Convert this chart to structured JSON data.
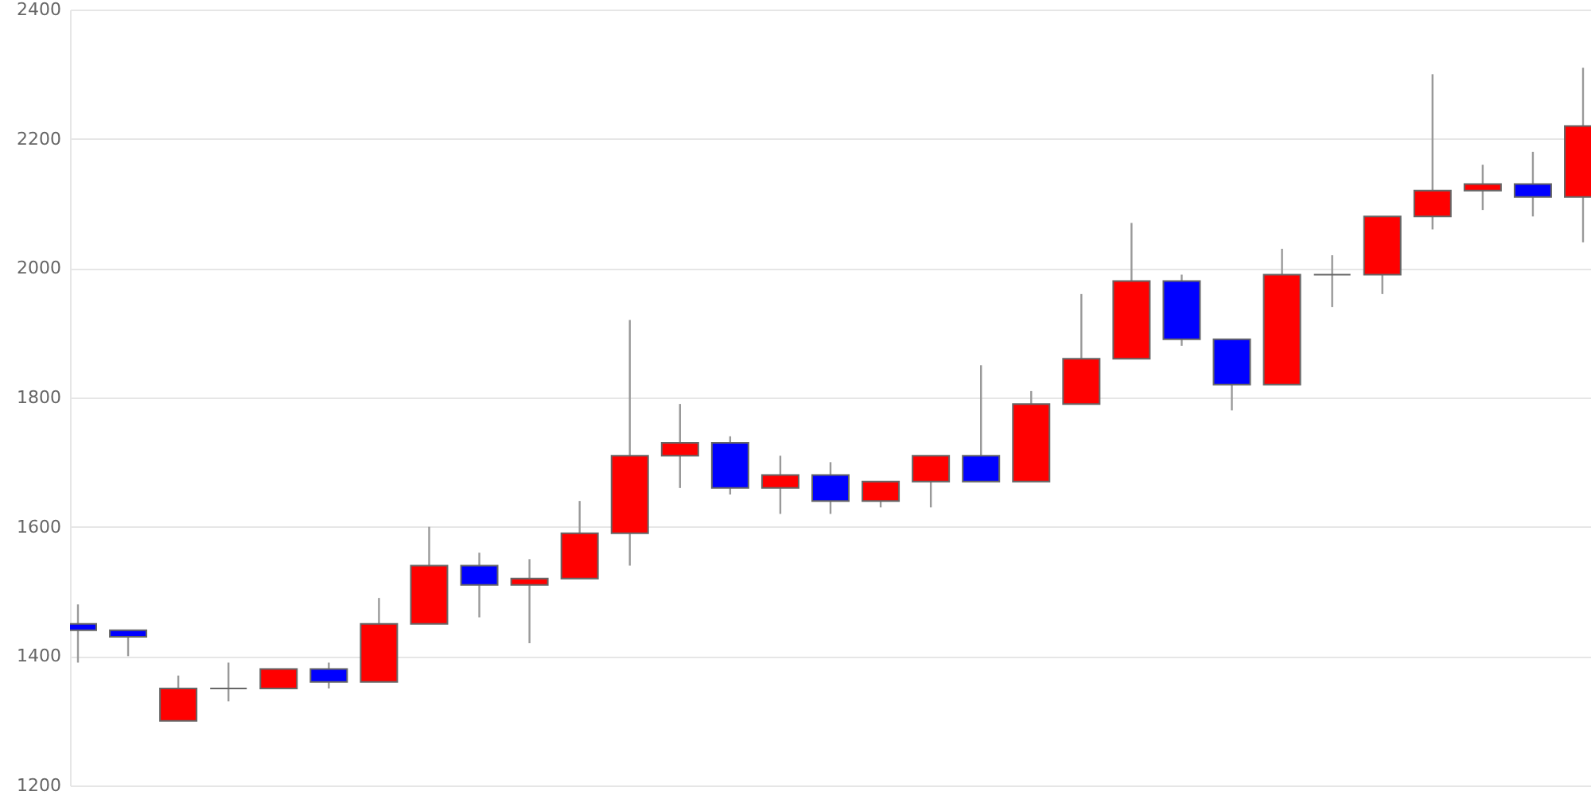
{
  "chart_data": {
    "type": "candlestick",
    "categories": [
      null,
      null,
      null,
      null,
      null,
      null,
      null,
      null,
      null,
      null,
      null,
      null,
      null,
      null,
      null,
      null,
      null,
      null,
      null,
      null,
      null,
      null,
      null,
      null,
      null,
      null,
      null,
      null,
      null,
      null,
      null
    ],
    "ohlc": [
      [
        1450,
        1480,
        1390,
        1440
      ],
      [
        1440,
        1440,
        1400,
        1430
      ],
      [
        1300,
        1370,
        1300,
        1350
      ],
      [
        1350,
        1390,
        1330,
        1350
      ],
      [
        1350,
        1380,
        1350,
        1380
      ],
      [
        1380,
        1390,
        1350,
        1360
      ],
      [
        1360,
        1490,
        1360,
        1450
      ],
      [
        1450,
        1600,
        1450,
        1540
      ],
      [
        1540,
        1560,
        1460,
        1510
      ],
      [
        1510,
        1550,
        1420,
        1520
      ],
      [
        1520,
        1640,
        1520,
        1590
      ],
      [
        1590,
        1920,
        1540,
        1710
      ],
      [
        1710,
        1790,
        1660,
        1730
      ],
      [
        1730,
        1740,
        1650,
        1660
      ],
      [
        1660,
        1710,
        1620,
        1680
      ],
      [
        1680,
        1700,
        1620,
        1640
      ],
      [
        1640,
        1670,
        1630,
        1670
      ],
      [
        1670,
        1710,
        1630,
        1710
      ],
      [
        1710,
        1850,
        1670,
        1670
      ],
      [
        1670,
        1810,
        1670,
        1790
      ],
      [
        1790,
        1960,
        1790,
        1860
      ],
      [
        1860,
        2070,
        1860,
        1980
      ],
      [
        1980,
        1990,
        1880,
        1890
      ],
      [
        1890,
        1890,
        1780,
        1820
      ],
      [
        1820,
        2030,
        1820,
        1990
      ],
      [
        1990,
        2020,
        1940,
        1990
      ],
      [
        1990,
        2080,
        1960,
        2080
      ],
      [
        2080,
        2300,
        2060,
        2120
      ],
      [
        2120,
        2160,
        2090,
        2130
      ],
      [
        2130,
        2180,
        2080,
        2110
      ],
      [
        2110,
        2310,
        2040,
        2220
      ]
    ],
    "colors": [
      "#0000ff",
      "#0000ff",
      "#ff0000",
      "#666666",
      "#ff0000",
      "#0000ff",
      "#ff0000",
      "#ff0000",
      "#0000ff",
      "#ff0000",
      "#ff0000",
      "#ff0000",
      "#ff0000",
      "#0000ff",
      "#ff0000",
      "#0000ff",
      "#ff0000",
      "#ff0000",
      "#0000ff",
      "#ff0000",
      "#ff0000",
      "#ff0000",
      "#0000ff",
      "#0000ff",
      "#ff0000",
      "#666666",
      "#ff0000",
      "#ff0000",
      "#ff0000",
      "#0000ff",
      "#ff0000"
    ],
    "ylim": [
      1200,
      2400
    ],
    "yticks": [
      1200,
      1400,
      1600,
      1800,
      2000,
      2200,
      2400
    ],
    "grid": "y",
    "tick_labels": "y"
  }
}
